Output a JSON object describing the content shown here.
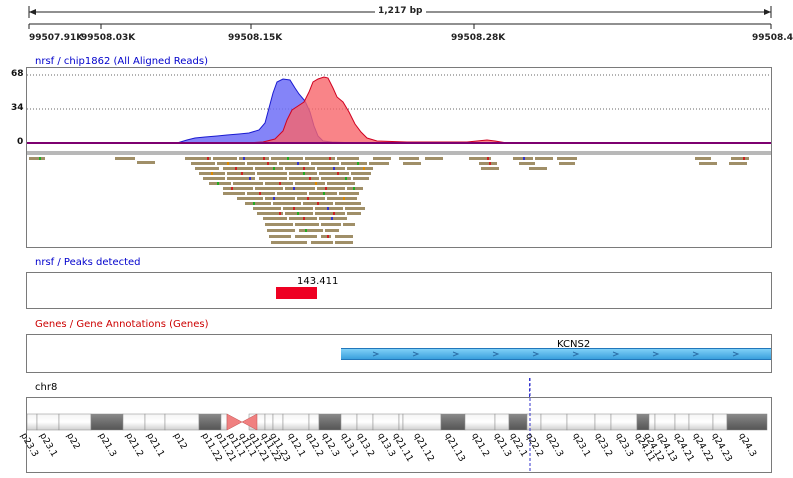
{
  "ruler": {
    "span_label": "1,217 bp",
    "ticks": [
      "99507.91K",
      "99508.03K",
      "99508.15K",
      "99508.28K",
      "99508.4"
    ]
  },
  "tracks": {
    "coverage": {
      "title": "nrsf / chip1862 (All Aligned Reads)",
      "scale": [
        "68",
        "34",
        "0"
      ]
    },
    "peaks": {
      "title": "nrsf / Peaks detected",
      "peak_label": "143.411"
    },
    "genes": {
      "title": "Genes / Gene Annotations (Genes)",
      "gene_label": "KCNS2"
    },
    "chromosome": {
      "title": "chr8",
      "bands": [
        "p23.3",
        "p23.1",
        "p22",
        "p21.3",
        "p21.2",
        "p21.1",
        "p12",
        "p11.22",
        "p11.21",
        "p11.1",
        "q11.1",
        "q11.21",
        "q11.22",
        "q11.23",
        "q12.1",
        "q12.2",
        "q12.3",
        "q13.1",
        "q13.2",
        "q13.3",
        "q21.11",
        "q21.12",
        "q21.13",
        "q21.2",
        "q21.3",
        "q22.1",
        "q22.2",
        "q22.3",
        "q23.1",
        "q23.2",
        "q23.3",
        "q24.11",
        "q24.12",
        "q24.13",
        "q24.21",
        "q24.22",
        "q24.23",
        "q24.3"
      ]
    }
  },
  "colors": {
    "coverage_blue": "#6f6ff7",
    "coverage_red": "#f7656a",
    "peak_red": "#ee0022",
    "gene_blue": "#55bbee",
    "centromere": "#f08080",
    "read_tan": "#a08f68"
  }
}
